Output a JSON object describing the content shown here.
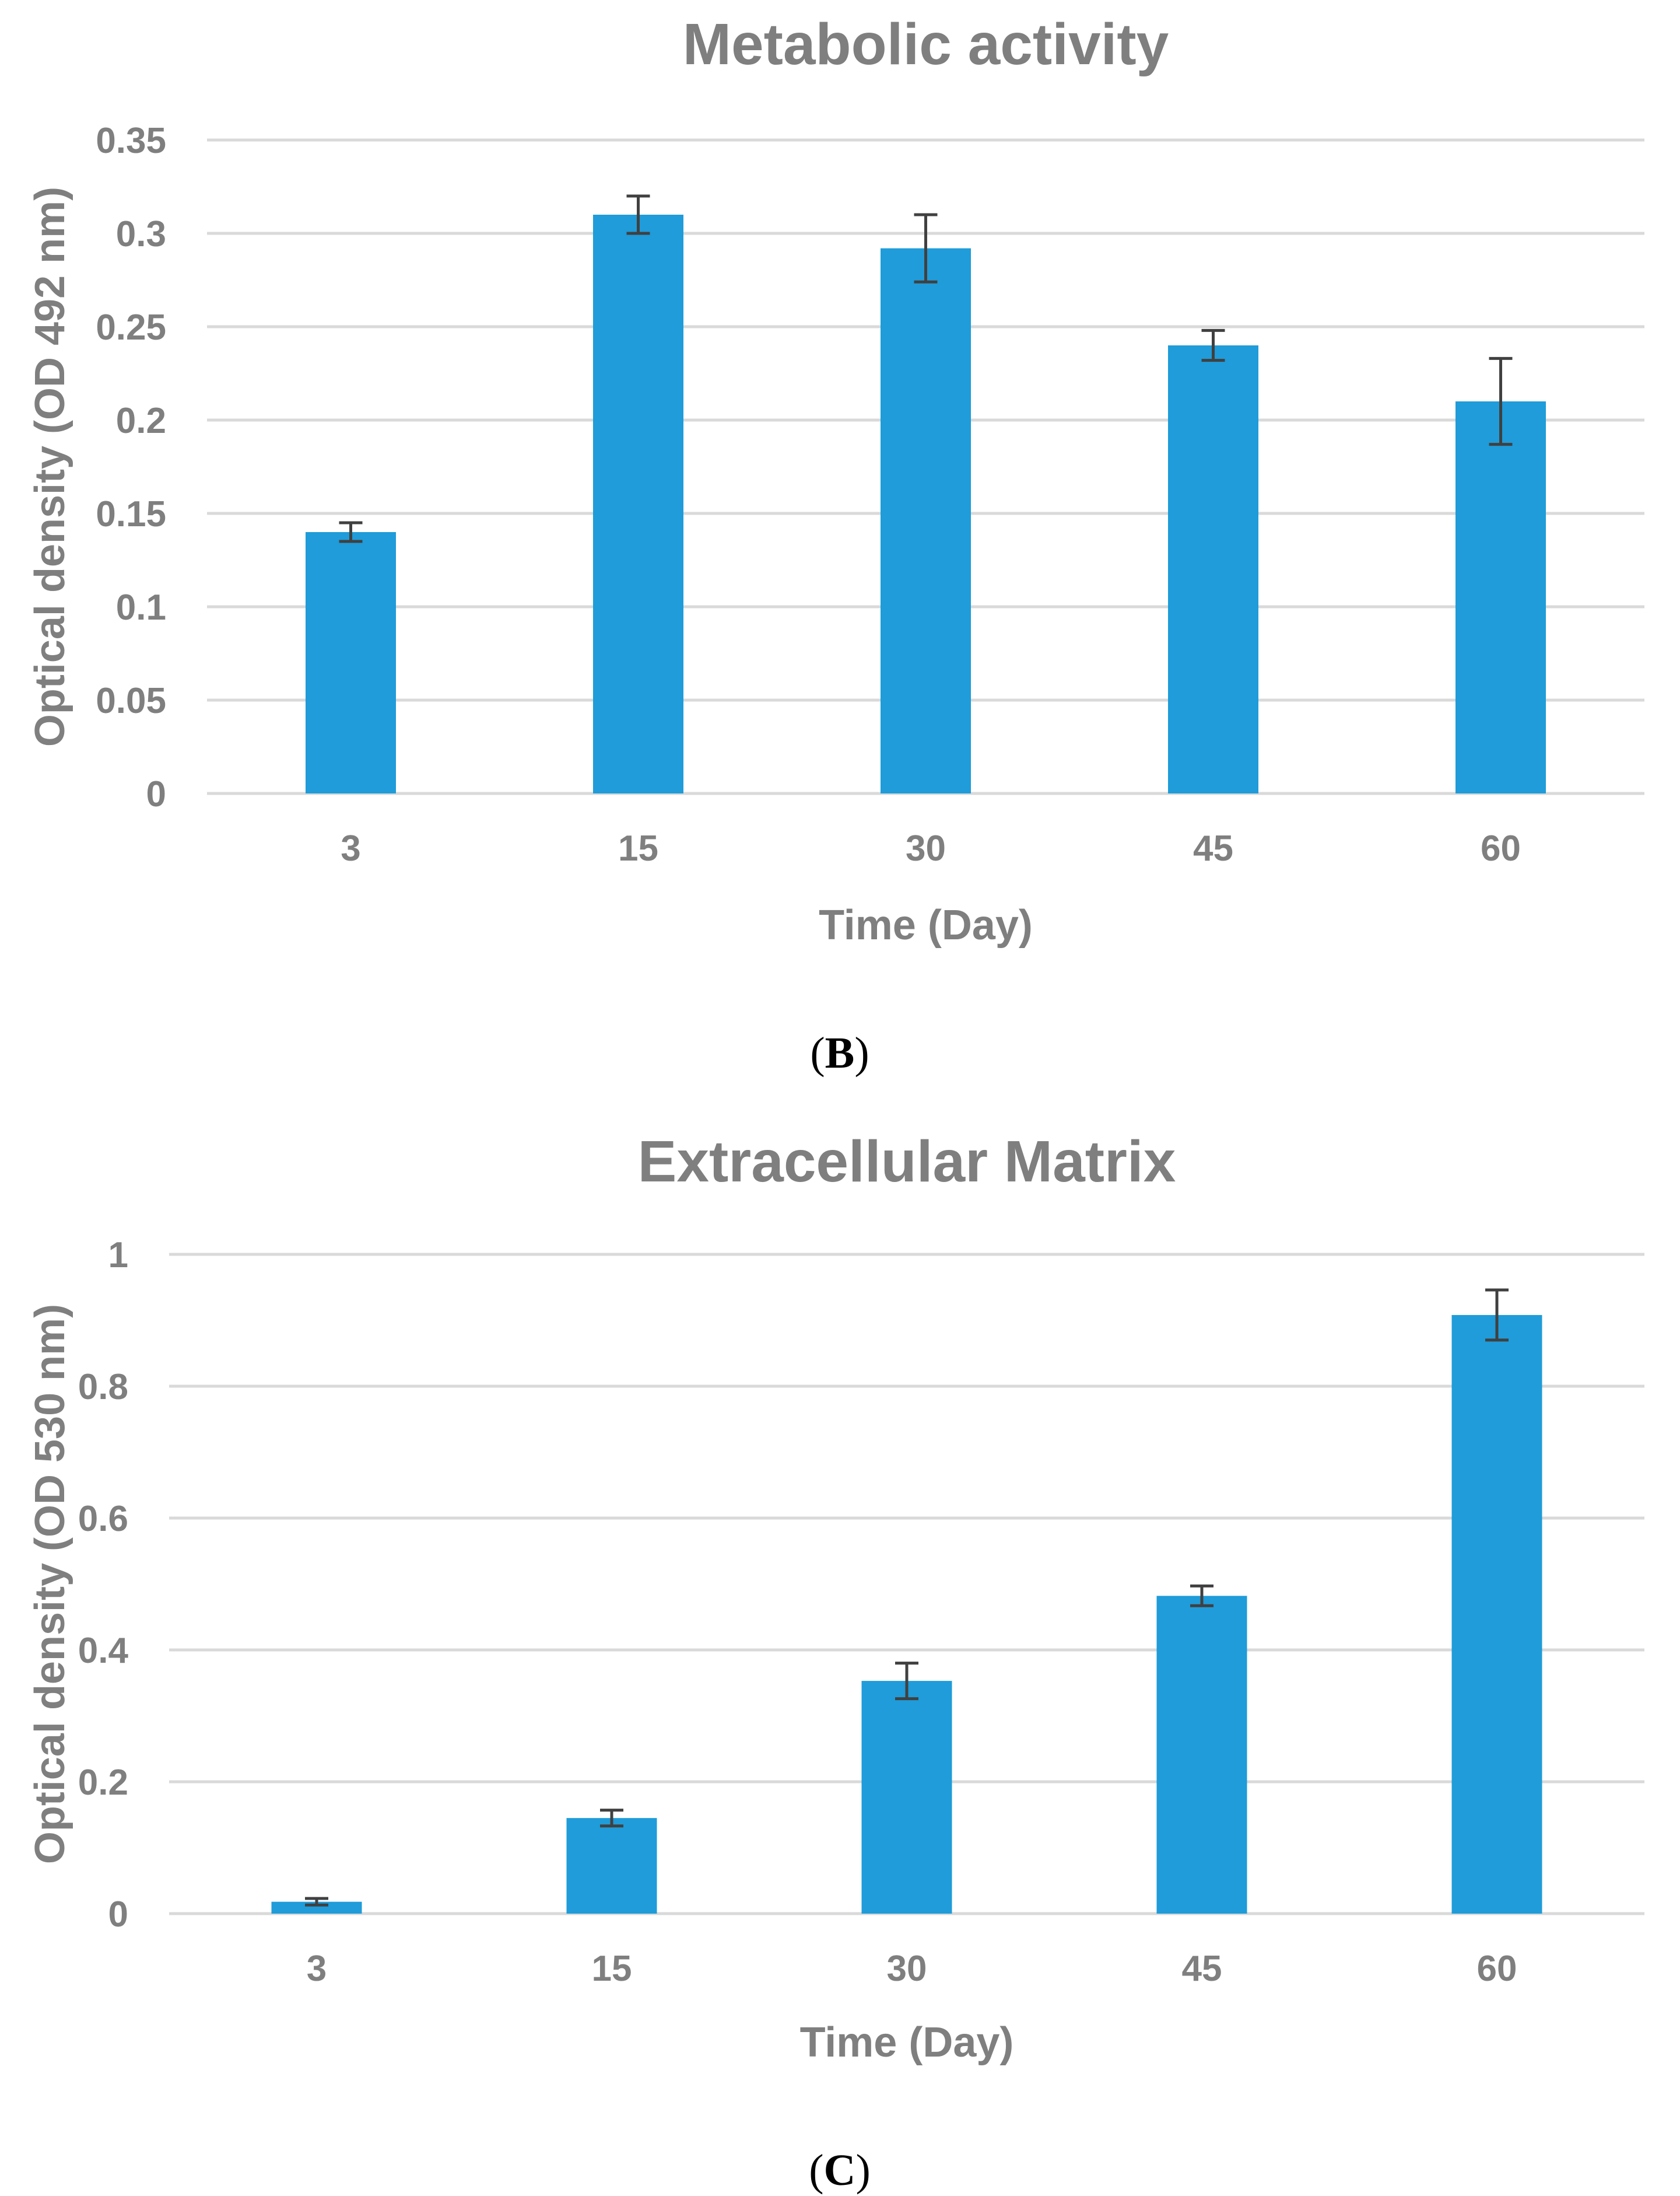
{
  "colors": {
    "bar": "#1f9cd9",
    "grid": "#d9d9d9",
    "text": "#7f7f7f",
    "error": "#404040"
  },
  "chart_data": [
    {
      "type": "bar",
      "title": "Metabolic activity",
      "caption": {
        "open": "(",
        "letter": "B",
        "close": ")"
      },
      "xlabel": "Time (Day)",
      "ylabel": "Optical density (OD 492 nm)",
      "categories": [
        "3",
        "15",
        "30",
        "45",
        "60"
      ],
      "values": [
        0.14,
        0.31,
        0.292,
        0.24,
        0.21
      ],
      "errors": [
        0.005,
        0.01,
        0.018,
        0.008,
        0.023
      ],
      "ylim": [
        0,
        0.35
      ],
      "yticks": [
        0,
        0.05,
        0.1,
        0.15,
        0.2,
        0.25,
        0.3,
        0.35
      ],
      "ytick_labels": [
        "0",
        "0.05",
        "0.1",
        "0.15",
        "0.2",
        "0.25",
        "0.3",
        "0.35"
      ],
      "grid": true
    },
    {
      "type": "bar",
      "title": "Extracellular Matrix",
      "caption": {
        "open": "(",
        "letter": "C",
        "close": ")"
      },
      "xlabel": "Time (Day)",
      "ylabel": "Optical density (OD 530 nm)",
      "categories": [
        "3",
        "15",
        "30",
        "45",
        "60"
      ],
      "values": [
        0.018,
        0.145,
        0.353,
        0.482,
        0.908
      ],
      "errors": [
        0.005,
        0.012,
        0.027,
        0.015,
        0.038
      ],
      "ylim": [
        0,
        1
      ],
      "yticks": [
        0,
        0.2,
        0.4,
        0.6,
        0.8,
        1
      ],
      "ytick_labels": [
        "0",
        "0.2",
        "0.4",
        "0.6",
        "0.8",
        "1"
      ],
      "grid": true
    }
  ]
}
